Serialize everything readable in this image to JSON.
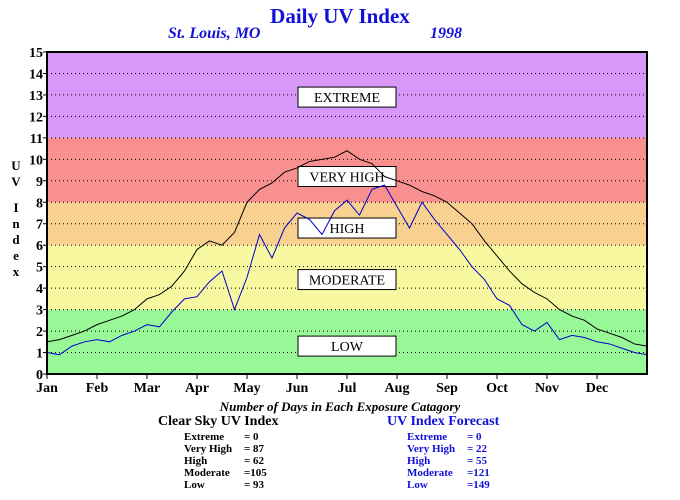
{
  "title": "Daily UV Index",
  "location": "St. Louis, MO",
  "year": "1998",
  "y_axis_label": "UV Index",
  "caption": "Number of Days in Each Exposure Catagory",
  "clear_sky": {
    "heading": "Clear Sky UV Index",
    "rows": [
      {
        "name": "Extreme",
        "value": "= 0"
      },
      {
        "name": "Very High",
        "value": "= 87"
      },
      {
        "name": "High",
        "value": "= 62"
      },
      {
        "name": "Moderate",
        "value": "=105"
      },
      {
        "name": "Low",
        "value": "= 93"
      }
    ]
  },
  "forecast": {
    "heading": "UV Index Forecast",
    "rows": [
      {
        "name": "Extreme",
        "value": "= 0"
      },
      {
        "name": "Very High",
        "value": "= 22"
      },
      {
        "name": "High",
        "value": "= 55"
      },
      {
        "name": "Moderate",
        "value": "=121"
      },
      {
        "name": "Low",
        "value": "=149"
      }
    ]
  },
  "chart_data": {
    "type": "line",
    "ylim": [
      0,
      15
    ],
    "yticks": [
      "0",
      "1",
      "2",
      "3",
      "4",
      "5",
      "6",
      "7",
      "8",
      "9",
      "10",
      "11",
      "12",
      "13",
      "14",
      "15"
    ],
    "xlabels": [
      "Jan",
      "Feb",
      "Mar",
      "Apr",
      "May",
      "Jun",
      "Jul",
      "Aug",
      "Sep",
      "Oct",
      "Nov",
      "Dec"
    ],
    "grid": true,
    "bands": [
      {
        "label": "LOW",
        "from": 0,
        "to": 3,
        "color": "#98f898",
        "label_at": 1.3
      },
      {
        "label": "MODERATE",
        "from": 3,
        "to": 6,
        "color": "#f8f8a0",
        "label_at": 4.4
      },
      {
        "label": "HIGH",
        "from": 6,
        "to": 8,
        "color": "#f8d090",
        "label_at": 6.8
      },
      {
        "label": "VERY HIGH",
        "from": 8,
        "to": 11,
        "color": "#f89090",
        "label_at": 9.2
      },
      {
        "label": "EXTREME",
        "from": 11,
        "to": 15,
        "color": "#d898f8",
        "label_at": 12.9
      }
    ],
    "series": [
      {
        "name": "Clear Sky UV Index",
        "color": "#000000",
        "x_month": [
          0,
          0.25,
          0.5,
          0.75,
          1,
          1.25,
          1.5,
          1.75,
          2,
          2.25,
          2.5,
          2.75,
          3,
          3.25,
          3.5,
          3.75,
          4,
          4.25,
          4.5,
          4.75,
          5,
          5.25,
          5.5,
          5.75,
          6,
          6.25,
          6.5,
          6.75,
          7,
          7.25,
          7.5,
          7.75,
          8,
          8.25,
          8.5,
          8.75,
          9,
          9.25,
          9.5,
          9.75,
          10,
          10.25,
          10.5,
          10.75,
          11,
          11.25,
          11.5,
          11.75,
          12
        ],
        "y": [
          1.5,
          1.6,
          1.8,
          2.0,
          2.3,
          2.5,
          2.7,
          3.0,
          3.5,
          3.7,
          4.1,
          4.8,
          5.8,
          6.2,
          6.0,
          6.6,
          8.0,
          8.6,
          8.9,
          9.4,
          9.6,
          9.9,
          10.0,
          10.1,
          10.4,
          10.0,
          9.8,
          9.2,
          9.0,
          8.8,
          8.5,
          8.3,
          8.0,
          7.5,
          7.0,
          6.2,
          5.5,
          4.8,
          4.2,
          3.8,
          3.5,
          3.0,
          2.7,
          2.5,
          2.1,
          1.9,
          1.7,
          1.4,
          1.3
        ]
      },
      {
        "name": "UV Index Forecast",
        "color": "#0000cc",
        "x_month": [
          0,
          0.25,
          0.5,
          0.75,
          1,
          1.25,
          1.5,
          1.75,
          2,
          2.25,
          2.5,
          2.75,
          3,
          3.25,
          3.5,
          3.75,
          4,
          4.25,
          4.5,
          4.75,
          5,
          5.25,
          5.5,
          5.75,
          6,
          6.25,
          6.5,
          6.75,
          7,
          7.25,
          7.5,
          7.75,
          8,
          8.25,
          8.5,
          8.75,
          9,
          9.25,
          9.5,
          9.75,
          10,
          10.25,
          10.5,
          10.75,
          11,
          11.25,
          11.5,
          11.75,
          12
        ],
        "y": [
          1.0,
          0.9,
          1.3,
          1.5,
          1.6,
          1.5,
          1.8,
          2.0,
          2.3,
          2.2,
          2.9,
          3.5,
          3.6,
          4.3,
          4.8,
          3.0,
          4.5,
          6.5,
          5.4,
          6.8,
          7.5,
          7.2,
          6.5,
          7.6,
          8.1,
          7.4,
          8.6,
          8.8,
          7.8,
          6.8,
          8.0,
          7.2,
          6.5,
          5.8,
          5.0,
          4.4,
          3.5,
          3.2,
          2.3,
          2.0,
          2.4,
          1.6,
          1.8,
          1.7,
          1.5,
          1.4,
          1.2,
          1.0,
          0.9
        ]
      }
    ]
  }
}
